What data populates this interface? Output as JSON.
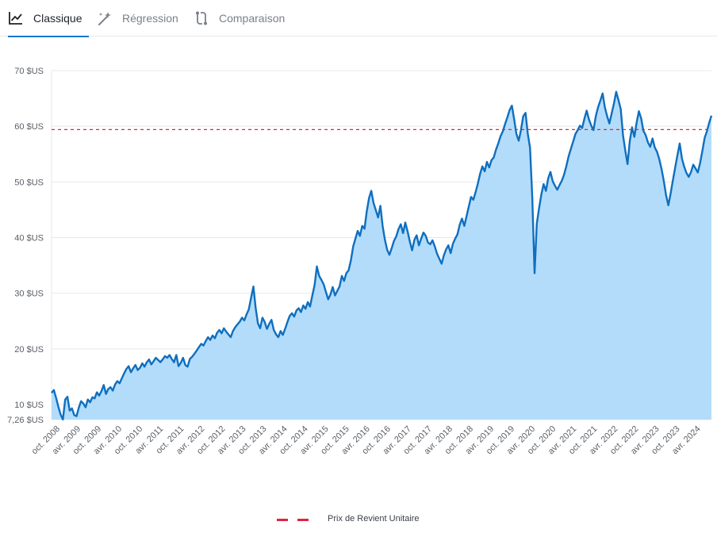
{
  "tabs": [
    {
      "label": "Classique",
      "icon": "line-chart-icon",
      "active": true
    },
    {
      "label": "Régression",
      "icon": "magic-wand-icon",
      "active": false
    },
    {
      "label": "Comparaison",
      "icon": "compare-arrows-icon",
      "active": false
    }
  ],
  "colors": {
    "line": "#0f6fbf",
    "area": "#b3dcfb",
    "reference": "#e0243c",
    "grid": "#e6e9ee"
  },
  "legend": {
    "label": "Prix de Revient Unitaire"
  },
  "chart_data": {
    "type": "area",
    "title": "",
    "xlabel": "",
    "ylabel": "",
    "ylim": [
      7.26,
      70
    ],
    "yticks": [
      {
        "v": 7.26,
        "label": "7,26 $US"
      },
      {
        "v": 10,
        "label": "10 $US"
      },
      {
        "v": 20,
        "label": "20 $US"
      },
      {
        "v": 30,
        "label": "30 $US"
      },
      {
        "v": 40,
        "label": "40 $US"
      },
      {
        "v": 50,
        "label": "50 $US"
      },
      {
        "v": 60,
        "label": "60 $US"
      },
      {
        "v": 70,
        "label": "70 $US"
      }
    ],
    "xticks": [
      "oct. 2008",
      "avr. 2009",
      "oct. 2009",
      "avr. 2010",
      "oct. 2010",
      "avr. 2011",
      "oct. 2011",
      "avr. 2012",
      "oct. 2012",
      "avr. 2013",
      "oct. 2013",
      "avr. 2014",
      "oct. 2014",
      "avr. 2015",
      "oct. 2015",
      "avr. 2016",
      "oct. 2016",
      "avr. 2017",
      "oct. 2017",
      "avr. 2018",
      "oct. 2018",
      "avr. 2019",
      "oct. 2019",
      "avr. 2020",
      "oct. 2020",
      "avr. 2021",
      "oct. 2021",
      "avr. 2022",
      "oct. 2022",
      "avr. 2023",
      "oct. 2023",
      "avr. 2024"
    ],
    "reference_line": {
      "name": "Prix de Revient Unitaire",
      "value": 59.4
    },
    "series": [
      {
        "x_start": "2008-08",
        "x_step": "quarter-month",
        "values": [
          12.1,
          12.6,
          11.2,
          9.6,
          8.2,
          7.3,
          10.9,
          11.4,
          8.9,
          9.3,
          8.1,
          7.9,
          9.4,
          10.6,
          10.2,
          9.5,
          10.9,
          10.4,
          11.3,
          11.1,
          12.2,
          11.6,
          12.4,
          13.5,
          11.9,
          12.8,
          13.1,
          12.5,
          13.6,
          14.2,
          13.8,
          14.7,
          15.6,
          16.4,
          16.9,
          15.8,
          16.5,
          17.1,
          16.2,
          16.6,
          17.4,
          16.8,
          17.6,
          18.1,
          17.2,
          17.8,
          18.4,
          18.0,
          17.6,
          18.1,
          18.7,
          18.4,
          18.9,
          18.2,
          17.6,
          18.9,
          16.9,
          17.5,
          18.4,
          17.1,
          16.8,
          18.2,
          18.6,
          19.1,
          19.7,
          20.3,
          20.9,
          20.6,
          21.4,
          22.1,
          21.6,
          22.4,
          21.9,
          22.9,
          23.4,
          22.8,
          23.7,
          23.1,
          22.6,
          22.1,
          23.2,
          23.9,
          24.4,
          24.9,
          25.6,
          25.1,
          26.2,
          27.1,
          29.2,
          31.2,
          27.4,
          24.6,
          23.7,
          25.6,
          24.8,
          23.6,
          24.5,
          25.2,
          23.4,
          22.6,
          22.1,
          23.2,
          22.5,
          23.6,
          24.8,
          25.9,
          26.4,
          25.8,
          26.9,
          27.3,
          26.6,
          27.8,
          27.2,
          28.4,
          27.6,
          29.6,
          31.5,
          34.8,
          33.1,
          32.4,
          31.6,
          30.2,
          28.9,
          29.8,
          31.1,
          29.6,
          30.4,
          31.2,
          33.1,
          32.2,
          33.6,
          34.1,
          35.9,
          38.4,
          39.8,
          41.2,
          40.3,
          42.1,
          41.6,
          44.7,
          47.1,
          48.4,
          46.2,
          44.9,
          43.6,
          45.7,
          42.1,
          39.6,
          37.8,
          36.9,
          38.1,
          39.4,
          40.2,
          41.5,
          42.4,
          40.8,
          42.7,
          41.1,
          39.3,
          37.7,
          39.6,
          40.4,
          38.6,
          39.8,
          40.9,
          40.3,
          39.1,
          38.8,
          39.5,
          38.4,
          37.1,
          36.2,
          35.3,
          36.8,
          37.9,
          38.6,
          37.2,
          38.9,
          39.8,
          40.6,
          42.3,
          43.4,
          42.1,
          43.8,
          45.6,
          47.3,
          46.8,
          48.2,
          49.7,
          51.5,
          52.8,
          51.9,
          53.6,
          52.6,
          53.9,
          54.4,
          55.8,
          56.9,
          58.2,
          59.1,
          60.4,
          61.6,
          62.9,
          63.7,
          61.2,
          58.6,
          57.4,
          59.3,
          61.8,
          62.4,
          58.7,
          56.1,
          47.2,
          33.6,
          42.5,
          45.3,
          47.8,
          49.6,
          48.4,
          50.6,
          51.8,
          50.1,
          49.3,
          48.6,
          49.4,
          50.2,
          51.3,
          52.8,
          54.6,
          55.9,
          57.2,
          58.6,
          59.3,
          60.1,
          59.7,
          61.4,
          62.8,
          61.2,
          60.1,
          59.3,
          61.8,
          63.4,
          64.6,
          65.9,
          63.4,
          61.8,
          60.5,
          62.3,
          64.1,
          66.2,
          64.7,
          63.1,
          58.4,
          55.6,
          53.2,
          57.4,
          59.8,
          58.1,
          60.6,
          62.7,
          61.4,
          59.2,
          58.4,
          57.1,
          56.3,
          57.8,
          56.2,
          55.4,
          54.1,
          52.3,
          50.1,
          47.6,
          45.8,
          47.9,
          50.3,
          52.6,
          54.8,
          56.9,
          54.2,
          52.7,
          51.6,
          50.9,
          51.8,
          53.1,
          52.4,
          51.7,
          53.4,
          55.6,
          57.9,
          59.1,
          60.6,
          61.9
        ]
      }
    ]
  }
}
